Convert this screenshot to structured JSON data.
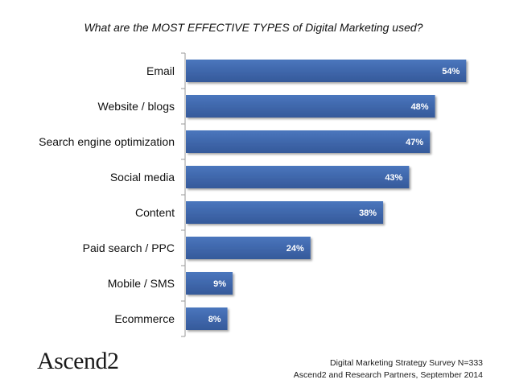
{
  "chart_data": {
    "type": "bar",
    "orientation": "horizontal",
    "title": "What are the MOST EFFECTIVE TYPES of Digital Marketing used?",
    "categories": [
      "Email",
      "Website / blogs",
      "Search engine optimization",
      "Social media",
      "Content",
      "Paid search / PPC",
      "Mobile / SMS",
      "Ecommerce"
    ],
    "values": [
      54,
      48,
      47,
      43,
      38,
      24,
      9,
      8
    ],
    "value_labels": [
      "54%",
      "48%",
      "47%",
      "43%",
      "38%",
      "24%",
      "9%",
      "8%"
    ],
    "unit": "%",
    "xlim": [
      0,
      60
    ],
    "grid": false,
    "legend": "none",
    "bar_color": "#3f68ad"
  },
  "logo": {
    "text": "Ascend2"
  },
  "source": {
    "line1": "Digital Marketing Strategy Survey N=333",
    "line2": "Ascend2 and Research Partners, September 2014"
  }
}
